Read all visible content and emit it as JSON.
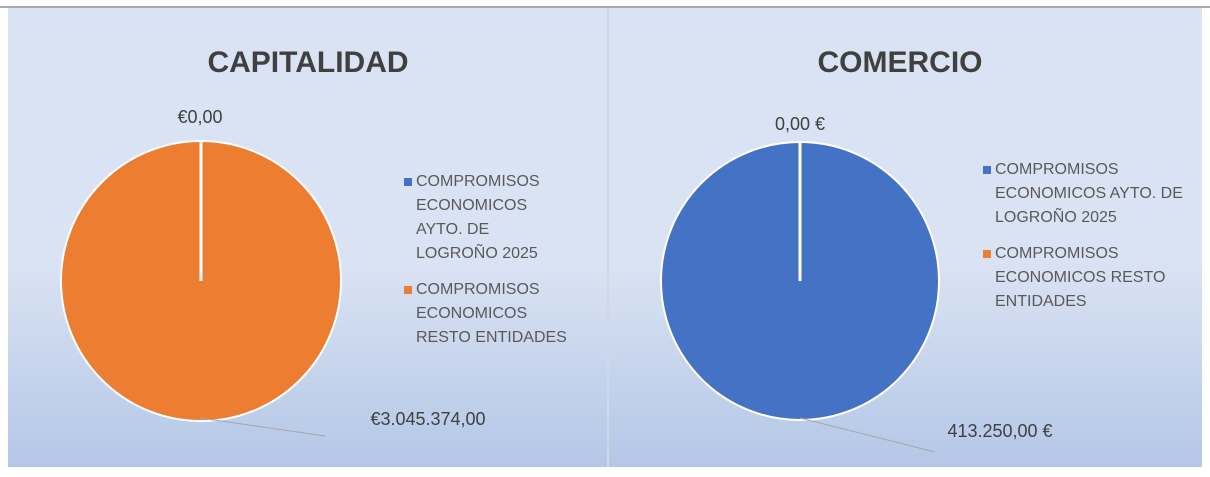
{
  "chart_data": [
    {
      "type": "pie",
      "title": "CAPITALIDAD",
      "categories": [
        "COMPROMISOS ECONOMICOS AYTO. DE LOGROÑO 2025",
        "COMPROMISOS ECONOMICOS RESTO ENTIDADES"
      ],
      "values": [
        0,
        3045374
      ],
      "value_labels": [
        "€0,00",
        "€3.045.374,00"
      ],
      "colors": [
        "#4472c4",
        "#ed7d31"
      ],
      "legend": "right"
    },
    {
      "type": "pie",
      "title": "COMERCIO",
      "categories": [
        "COMPROMISOS ECONOMICOS AYTO. DE LOGROÑO 2025",
        "COMPROMISOS ECONOMICOS RESTO ENTIDADES"
      ],
      "values": [
        413250,
        0
      ],
      "value_labels": [
        "413.250,00 €",
        "0,00 €"
      ],
      "colors": [
        "#4472c4",
        "#ed7d31"
      ],
      "legend": "right"
    }
  ]
}
